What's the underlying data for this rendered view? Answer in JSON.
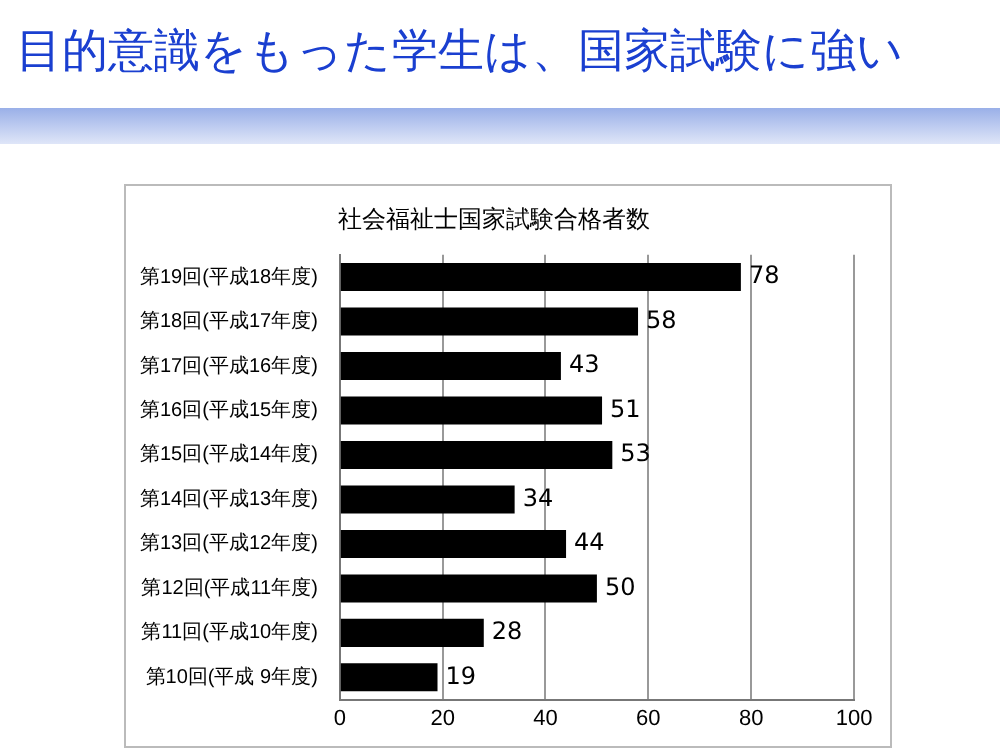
{
  "chart_data": {
    "type": "bar",
    "orientation": "horizontal",
    "title": "目的意識をもった学生は、国家試験に強い",
    "subtitle": "社会福祉士国家試験合格者数",
    "categories": [
      "第19回(平成18年度)",
      "第18回(平成17年度)",
      "第17回(平成16年度)",
      "第16回(平成15年度)",
      "第15回(平成14年度)",
      "第14回(平成13年度)",
      "第13回(平成12年度)",
      "第12回(平成11年度)",
      "第11回(平成10年度)",
      "第10回(平成 9年度)"
    ],
    "values": [
      78,
      58,
      43,
      51,
      53,
      34,
      44,
      50,
      28,
      19
    ],
    "color": "#000000",
    "xlim": [
      0,
      100
    ],
    "xticks": [
      0,
      20,
      40,
      60,
      80,
      100
    ],
    "grid": "x",
    "data_labels": true,
    "legend": false
  }
}
